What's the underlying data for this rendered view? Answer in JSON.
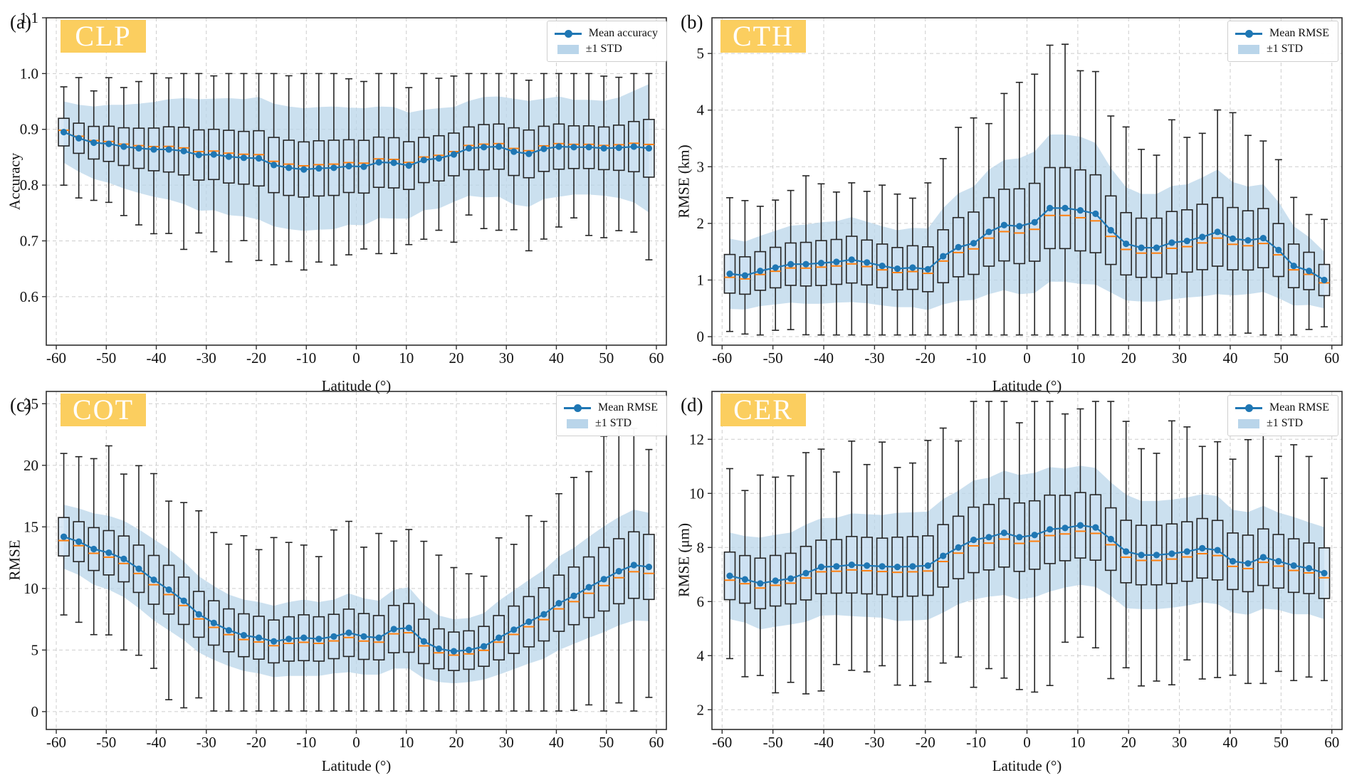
{
  "figure_title": "",
  "x_axis": {
    "label": "Latitude (°)",
    "ticks": [
      -60,
      -50,
      -40,
      -30,
      -20,
      -10,
      0,
      10,
      20,
      30,
      40,
      50,
      60
    ],
    "lim": [
      -62,
      62
    ],
    "bin_centers": [
      -58.5,
      -55.5,
      -52.5,
      -49.5,
      -46.5,
      -43.5,
      -40.5,
      -37.5,
      -34.5,
      -31.5,
      -28.5,
      -25.5,
      -22.5,
      -19.5,
      -16.5,
      -13.5,
      -10.5,
      -7.5,
      -4.5,
      -1.5,
      1.5,
      4.5,
      7.5,
      10.5,
      13.5,
      16.5,
      19.5,
      22.5,
      25.5,
      28.5,
      31.5,
      34.5,
      37.5,
      40.5,
      43.5,
      46.5,
      49.5,
      52.5,
      55.5,
      58.5
    ]
  },
  "colors": {
    "mean_line": "#1f77b4",
    "median": "#ff7f0e",
    "band": "#b9d5ea",
    "box_fill": "rgba(205,226,243,0.75)",
    "box_edge": "#262626",
    "grid": "#cdcdcd",
    "spine": "#2f2f2f",
    "tag_bg": "#fbce5f",
    "tag_text": "#ffffff"
  },
  "chart_data": [
    {
      "type": "boxplot+line+band",
      "panel_label": "(a)",
      "tag": "CLP",
      "ylabel": "Accuracy",
      "xlabel": "Latitude (°)",
      "legend": {
        "mean_label": "Mean accuracy",
        "std_label": "±1 STD"
      },
      "yticks": [
        0.6,
        0.7,
        0.8,
        0.9,
        1.0,
        1.1
      ],
      "ytick_decimals": 1,
      "ylim": [
        0.513,
        1.1
      ],
      "mean": [
        0.895,
        0.884,
        0.876,
        0.874,
        0.869,
        0.866,
        0.864,
        0.864,
        0.861,
        0.854,
        0.855,
        0.851,
        0.849,
        0.848,
        0.836,
        0.831,
        0.828,
        0.83,
        0.831,
        0.834,
        0.833,
        0.841,
        0.84,
        0.835,
        0.845,
        0.848,
        0.855,
        0.866,
        0.868,
        0.869,
        0.86,
        0.856,
        0.865,
        0.869,
        0.868,
        0.868,
        0.866,
        0.867,
        0.869,
        0.866
      ],
      "std": [
        0.055,
        0.06,
        0.065,
        0.07,
        0.075,
        0.08,
        0.085,
        0.09,
        0.095,
        0.1,
        0.1,
        0.105,
        0.105,
        0.11,
        0.11,
        0.11,
        0.11,
        0.11,
        0.11,
        0.105,
        0.105,
        0.1,
        0.1,
        0.095,
        0.09,
        0.09,
        0.085,
        0.085,
        0.09,
        0.09,
        0.095,
        0.095,
        0.09,
        0.09,
        0.085,
        0.085,
        0.085,
        0.09,
        0.1,
        0.115
      ],
      "box_model": {
        "f_box": 0.45,
        "f_med": 0.06,
        "f_whisk": 1.15,
        "clip_lo": 0.575,
        "clip_hi": 1.0,
        "seed": 3
      }
    },
    {
      "type": "boxplot+line+band",
      "panel_label": "(b)",
      "tag": "CTH",
      "ylabel": "RMSE (km)",
      "xlabel": "Latitude (°)",
      "legend": {
        "mean_label": "Mean RMSE",
        "std_label": "±1 STD"
      },
      "yticks": [
        0,
        1,
        2,
        3,
        4,
        5
      ],
      "ytick_decimals": 0,
      "ylim": [
        -0.15,
        5.63
      ],
      "mean": [
        1.11,
        1.08,
        1.16,
        1.22,
        1.28,
        1.28,
        1.3,
        1.32,
        1.36,
        1.31,
        1.25,
        1.2,
        1.22,
        1.19,
        1.42,
        1.58,
        1.65,
        1.85,
        1.97,
        1.95,
        2.02,
        2.27,
        2.27,
        2.23,
        2.17,
        1.88,
        1.64,
        1.57,
        1.57,
        1.66,
        1.69,
        1.76,
        1.85,
        1.73,
        1.7,
        1.74,
        1.53,
        1.25,
        1.16,
        1.0
      ],
      "std": [
        0.62,
        0.6,
        0.62,
        0.65,
        0.68,
        0.7,
        0.72,
        0.72,
        0.75,
        0.72,
        0.7,
        0.68,
        0.7,
        0.72,
        0.85,
        0.95,
        1.0,
        1.1,
        1.15,
        1.2,
        1.25,
        1.3,
        1.3,
        1.3,
        1.25,
        1.1,
        1.0,
        0.95,
        0.95,
        1.0,
        1.0,
        1.05,
        1.1,
        1.0,
        0.95,
        0.95,
        0.85,
        0.7,
        0.6,
        0.5
      ],
      "box_model": {
        "f_box": 0.55,
        "f_med": -0.1,
        "f_whisk": 1.35,
        "clip_lo": 0.03,
        "clip_hi": 5.4,
        "seed": 11
      }
    },
    {
      "type": "boxplot+line+band",
      "panel_label": "(c)",
      "tag": "COT",
      "ylabel": "RMSE",
      "xlabel": "Latitude (°)",
      "legend": {
        "mean_label": "Mean RMSE",
        "std_label": "±1 STD"
      },
      "yticks": [
        0,
        5,
        10,
        15,
        20,
        25
      ],
      "ytick_decimals": 0,
      "ylim": [
        -1.45,
        26.0
      ],
      "mean": [
        14.2,
        13.8,
        13.2,
        12.9,
        12.4,
        11.6,
        10.7,
        9.9,
        9.0,
        7.9,
        7.2,
        6.6,
        6.2,
        6.0,
        5.7,
        5.9,
        6.0,
        5.9,
        6.1,
        6.4,
        6.1,
        6.0,
        6.7,
        6.8,
        5.7,
        5.1,
        4.9,
        5.0,
        5.3,
        6.0,
        6.65,
        7.3,
        7.9,
        8.8,
        9.4,
        10.1,
        10.75,
        11.4,
        11.9,
        11.75
      ],
      "std": [
        2.6,
        2.7,
        2.9,
        3.0,
        3.1,
        3.2,
        3.3,
        3.3,
        3.2,
        3.1,
        3.0,
        2.9,
        2.9,
        2.9,
        2.9,
        3.0,
        3.1,
        3.0,
        3.0,
        3.2,
        3.1,
        3.0,
        3.2,
        3.3,
        3.0,
        2.7,
        2.6,
        2.6,
        2.7,
        3.0,
        3.2,
        3.4,
        3.6,
        3.8,
        3.9,
        4.1,
        4.3,
        4.4,
        4.5,
        4.4
      ],
      "box_model": {
        "f_box": 0.6,
        "f_med": -0.12,
        "f_whisk": 1.85,
        "clip_lo": 0.05,
        "clip_hi": 23.0,
        "seed": 23
      }
    },
    {
      "type": "boxplot+line+band",
      "panel_label": "(d)",
      "tag": "CER",
      "ylabel": "RMSE (μm)",
      "xlabel": "Latitude (°)",
      "legend": {
        "mean_label": "Mean RMSE",
        "std_label": "±1 STD"
      },
      "yticks": [
        2,
        4,
        6,
        8,
        10,
        12
      ],
      "ytick_decimals": 0,
      "ylim": [
        1.27,
        13.77
      ],
      "mean": [
        6.95,
        6.82,
        6.67,
        6.77,
        6.85,
        7.05,
        7.28,
        7.3,
        7.36,
        7.33,
        7.3,
        7.28,
        7.3,
        7.33,
        7.69,
        8.0,
        8.28,
        8.38,
        8.54,
        8.38,
        8.46,
        8.67,
        8.72,
        8.82,
        8.74,
        8.31,
        7.85,
        7.72,
        7.72,
        7.77,
        7.85,
        7.97,
        7.9,
        7.49,
        7.41,
        7.64,
        7.49,
        7.33,
        7.23,
        7.05
      ],
      "std": [
        1.6,
        1.6,
        1.7,
        1.7,
        1.7,
        1.8,
        1.8,
        1.8,
        1.9,
        1.9,
        1.9,
        2.0,
        2.0,
        2.0,
        2.1,
        2.1,
        2.2,
        2.2,
        2.3,
        2.3,
        2.3,
        2.3,
        2.2,
        2.2,
        2.2,
        2.1,
        2.1,
        2.0,
        2.0,
        2.0,
        2.0,
        2.0,
        2.0,
        1.9,
        1.9,
        1.9,
        1.8,
        1.8,
        1.7,
        1.7
      ],
      "box_model": {
        "f_box": 0.55,
        "f_med": -0.1,
        "f_whisk": 1.6,
        "clip_lo": 1.95,
        "clip_hi": 13.4,
        "seed": 31
      }
    }
  ]
}
